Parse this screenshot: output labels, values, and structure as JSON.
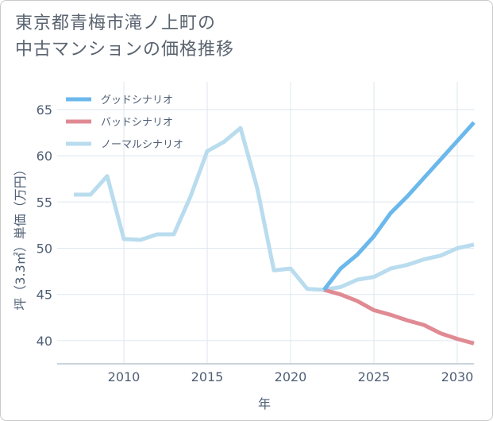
{
  "title": {
    "line1": "東京都青梅市滝ノ上町の",
    "line2": "中古マンションの価格推移"
  },
  "chart_data": {
    "type": "line",
    "xlabel": "年",
    "ylabel": "坪（3.3㎡）単価（万円）",
    "xlim": [
      2006.0,
      2031.0
    ],
    "ylim": [
      37.5,
      68.0
    ],
    "xticks": [
      2010,
      2015,
      2020,
      2025,
      2030
    ],
    "yticks": [
      40,
      45,
      50,
      55,
      60,
      65
    ],
    "grid": true,
    "legend_position": "top-left",
    "series": [
      {
        "name": "グッドシナリオ",
        "color": "#6bb8ec",
        "x": [
          2022,
          2023,
          2024,
          2025,
          2026,
          2027,
          2028,
          2029,
          2030,
          2031
        ],
        "y": [
          45.5,
          47.8,
          49.3,
          51.3,
          53.8,
          55.6,
          57.6,
          59.6,
          61.6,
          63.6
        ]
      },
      {
        "name": "バッドシナリオ",
        "color": "#e08b93",
        "x": [
          2022,
          2023,
          2024,
          2025,
          2026,
          2027,
          2028,
          2029,
          2030,
          2031
        ],
        "y": [
          45.5,
          45.0,
          44.3,
          43.3,
          42.8,
          42.2,
          41.7,
          40.8,
          40.2,
          39.7
        ]
      },
      {
        "name": "ノーマルシナリオ",
        "color": "#b9dcee",
        "x": [
          2007,
          2008,
          2009,
          2010,
          2011,
          2012,
          2013,
          2014,
          2015,
          2016,
          2017,
          2018,
          2019,
          2020,
          2021,
          2022,
          2023,
          2024,
          2025,
          2026,
          2027,
          2028,
          2029,
          2030,
          2031
        ],
        "y": [
          55.8,
          55.8,
          57.8,
          51.0,
          50.9,
          51.5,
          51.5,
          55.6,
          60.5,
          61.5,
          63.0,
          56.5,
          47.6,
          47.8,
          45.6,
          45.5,
          45.8,
          46.6,
          46.9,
          47.8,
          48.2,
          48.8,
          49.2,
          50.0,
          50.4
        ]
      }
    ]
  }
}
